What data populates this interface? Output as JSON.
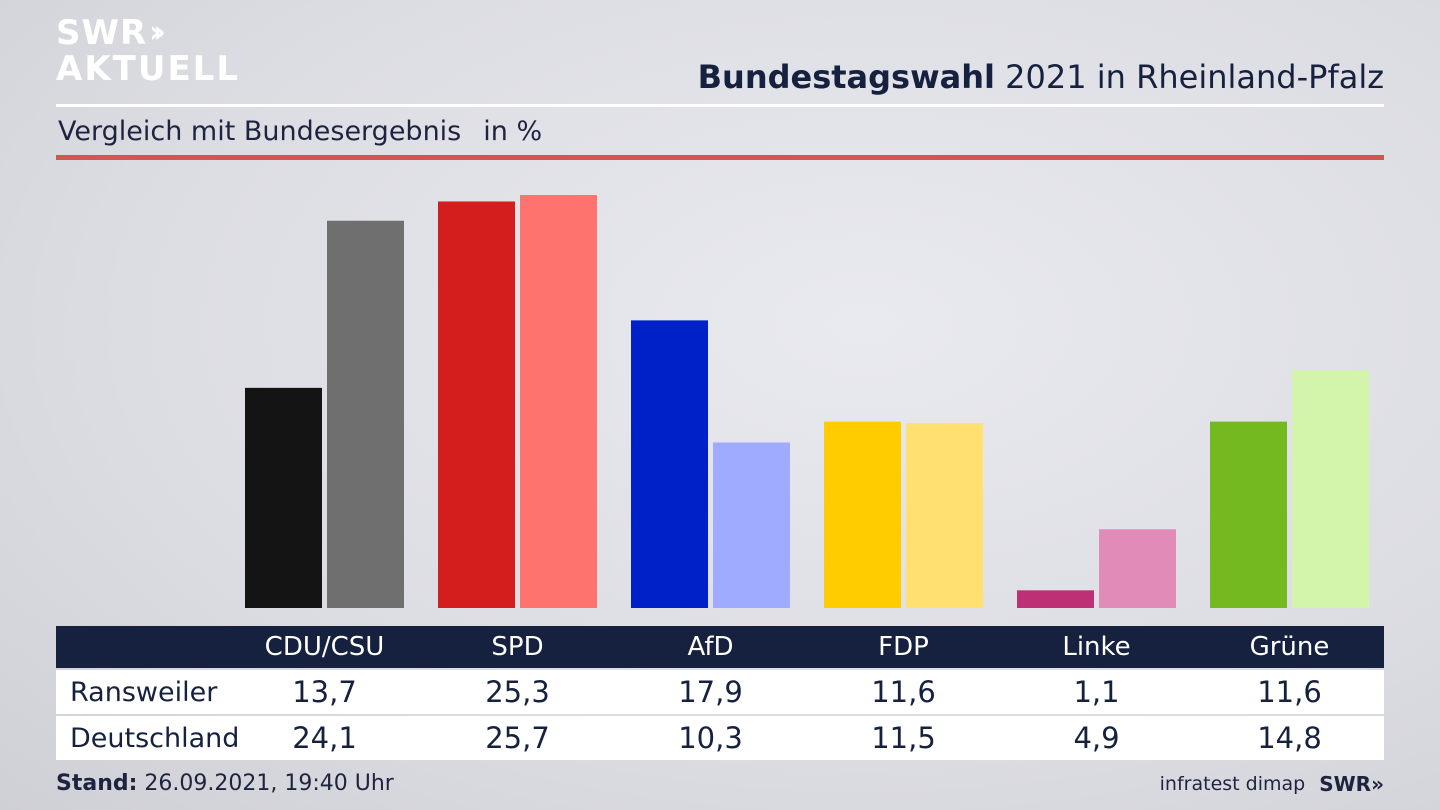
{
  "logo": {
    "line1": "SWR",
    "chevrons": "››",
    "line2": "AKTUELL"
  },
  "header": {
    "title_bold": "Bundestagswahl",
    "title_rest": " 2021 in Rheinland-Pfalz",
    "subtitle": "Vergleich mit Bundesergebnis",
    "unit": "in %"
  },
  "chart_data": {
    "type": "bar",
    "categories": [
      "CDU/CSU",
      "SPD",
      "AfD",
      "FDP",
      "Linke",
      "Grüne"
    ],
    "series": [
      {
        "name": "Ransweiler",
        "values": [
          13.7,
          25.3,
          17.9,
          11.6,
          1.1,
          11.6
        ]
      },
      {
        "name": "Deutschland",
        "values": [
          24.1,
          25.7,
          10.3,
          11.5,
          4.9,
          14.8
        ]
      }
    ],
    "colors": {
      "Ransweiler": [
        "#141414",
        "#d41e1e",
        "#0021c8",
        "#ffcc00",
        "#be3075",
        "#74b91f"
      ],
      "Deutschland": [
        "#706f6f",
        "#ff736e",
        "#9eabff",
        "#ffe070",
        "#e18bb9",
        "#d3f5ab"
      ]
    },
    "ylim": [
      0,
      26.2
    ]
  },
  "footer": {
    "stand_label": "Stand:",
    "stand_value": " 26.09.2021, 19:40 Uhr",
    "source": "infratest dimap",
    "brand": "SWR»"
  }
}
